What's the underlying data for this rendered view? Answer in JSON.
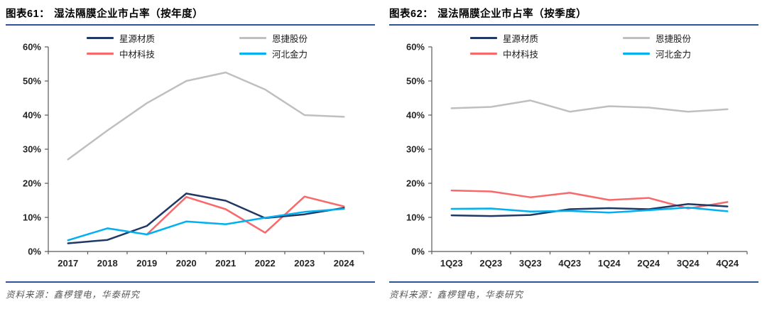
{
  "panels": [
    {
      "label": "图表61：",
      "title": "湿法隔膜企业市占率（按年度）",
      "source_label": "资料来源：",
      "source": "鑫椤锂电，华泰研究"
    },
    {
      "label": "图表62：",
      "title": "湿法隔膜企业市占率（按季度）",
      "source_label": "资料来源：",
      "source": "鑫椤锂电，华泰研究"
    }
  ],
  "colors": {
    "rule_blue": "#2F5597",
    "axis": "#595959",
    "tick_text": "#262626",
    "series_navy": "#1F3864",
    "series_red": "#F8696B",
    "series_gray": "#BFBFBF",
    "series_cyan": "#00B0F0"
  },
  "chart_data": [
    {
      "type": "line",
      "title": "湿法隔膜企业市占率（按年度）",
      "xlabel": "",
      "ylabel": "",
      "ylim": [
        0,
        60
      ],
      "ytick_step": 10,
      "ytick_suffix": "%",
      "grid": false,
      "legend_position": "top-center",
      "categories": [
        "2017",
        "2018",
        "2019",
        "2020",
        "2021",
        "2022",
        "2023",
        "2024"
      ],
      "series": [
        {
          "name": "星源材质",
          "color": "#1F3864",
          "values": [
            2.4,
            3.4,
            7.5,
            17.0,
            14.9,
            9.8,
            10.9,
            12.8
          ]
        },
        {
          "name": "中材科技",
          "color": "#F8696B",
          "values": [
            null,
            null,
            5.0,
            16.0,
            12.4,
            5.5,
            16.1,
            13.2
          ]
        },
        {
          "name": "恩捷股份",
          "color": "#BFBFBF",
          "values": [
            27.0,
            35.5,
            43.5,
            50.0,
            52.5,
            47.5,
            40.0,
            39.5
          ]
        },
        {
          "name": "河北金力",
          "color": "#00B0F0",
          "values": [
            3.3,
            6.8,
            5.0,
            8.8,
            8.0,
            9.9,
            11.6,
            12.5
          ]
        }
      ],
      "draw_order": [
        2,
        1,
        0,
        3
      ]
    },
    {
      "type": "line",
      "title": "湿法隔膜企业市占率（按季度）",
      "xlabel": "",
      "ylabel": "",
      "ylim": [
        0,
        60
      ],
      "ytick_step": 10,
      "ytick_suffix": "%",
      "grid": false,
      "legend_position": "top-center",
      "categories": [
        "1Q23",
        "2Q23",
        "3Q23",
        "4Q23",
        "1Q24",
        "2Q24",
        "3Q24",
        "4Q24"
      ],
      "series": [
        {
          "name": "星源材质",
          "color": "#1F3864",
          "values": [
            10.6,
            10.4,
            10.7,
            12.4,
            12.7,
            12.4,
            13.9,
            13.2
          ]
        },
        {
          "name": "中材科技",
          "color": "#F8696B",
          "values": [
            17.9,
            17.6,
            15.9,
            17.2,
            15.1,
            15.7,
            12.6,
            14.5
          ]
        },
        {
          "name": "恩捷股份",
          "color": "#BFBFBF",
          "values": [
            42.0,
            42.4,
            44.3,
            41.0,
            42.6,
            42.2,
            41.0,
            41.7
          ]
        },
        {
          "name": "河北金力",
          "color": "#00B0F0",
          "values": [
            12.5,
            12.6,
            11.7,
            11.9,
            11.4,
            12.1,
            12.9,
            11.8
          ]
        }
      ],
      "draw_order": [
        2,
        1,
        0,
        3
      ]
    }
  ]
}
